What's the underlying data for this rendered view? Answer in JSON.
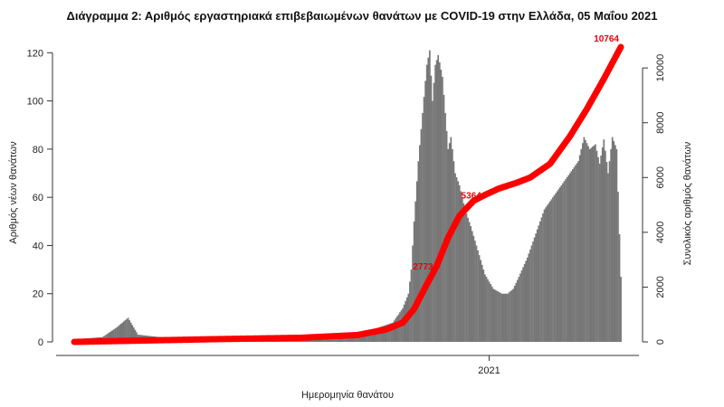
{
  "chart_data": {
    "type": "bar",
    "title": "Διάγραμμα 2: Αριθμός εργαστηριακά επιβεβαιωμένων θανάτων με COVID-19 στην Ελλάδα, 05 Μαΐου 2021",
    "xlabel": "Ημερομηνία θανάτου",
    "ylabel_left": "Αριθμός νέων θανάτων",
    "ylabel_right": "Συνολικός αριθμός θανάτων",
    "x_tick_labels": [
      "2021"
    ],
    "ylim_left": [
      0,
      125
    ],
    "yticks_left": [
      0,
      20,
      40,
      60,
      80,
      100,
      120
    ],
    "ylim_right": [
      0,
      10764
    ],
    "yticks_right": [
      0,
      2000,
      4000,
      6000,
      8000,
      10000
    ],
    "series": [
      {
        "name": "",
        "kind": "bar",
        "axis": "left",
        "color": "#777777",
        "daily_points": [
          [
            0,
            1
          ],
          [
            20,
            2
          ],
          [
            30,
            6
          ],
          [
            38,
            10
          ],
          [
            45,
            3
          ],
          [
            60,
            2
          ],
          [
            100,
            1
          ],
          [
            140,
            1
          ],
          [
            180,
            1
          ],
          [
            200,
            2
          ],
          [
            210,
            5
          ],
          [
            225,
            8
          ],
          [
            232,
            14
          ],
          [
            236,
            20
          ],
          [
            238,
            30
          ],
          [
            240,
            50
          ],
          [
            243,
            75
          ],
          [
            246,
            95
          ],
          [
            249,
            115
          ],
          [
            251,
            121
          ],
          [
            253,
            100
          ],
          [
            255,
            115
          ],
          [
            257,
            119
          ],
          [
            260,
            110
          ],
          [
            262,
            95
          ],
          [
            264,
            80
          ],
          [
            266,
            85
          ],
          [
            269,
            70
          ],
          [
            272,
            65
          ],
          [
            276,
            55
          ],
          [
            280,
            48
          ],
          [
            284,
            40
          ],
          [
            290,
            28
          ],
          [
            296,
            22
          ],
          [
            302,
            20
          ],
          [
            306,
            20
          ],
          [
            310,
            22
          ],
          [
            314,
            27
          ],
          [
            320,
            35
          ],
          [
            326,
            45
          ],
          [
            332,
            55
          ],
          [
            338,
            60
          ],
          [
            344,
            65
          ],
          [
            350,
            70
          ],
          [
            356,
            75
          ],
          [
            360,
            85
          ],
          [
            364,
            80
          ],
          [
            368,
            82
          ],
          [
            371,
            74
          ],
          [
            374,
            84
          ],
          [
            377,
            70
          ],
          [
            380,
            85
          ],
          [
            383,
            80
          ],
          [
            386,
            27
          ]
        ]
      },
      {
        "name": "",
        "kind": "line",
        "axis": "right",
        "color": "#ff0000",
        "cumulative_points": [
          [
            0,
            0
          ],
          [
            100,
            100
          ],
          [
            160,
            150
          ],
          [
            200,
            250
          ],
          [
            220,
            450
          ],
          [
            232,
            700
          ],
          [
            240,
            1200
          ],
          [
            248,
            2000
          ],
          [
            256,
            2773
          ],
          [
            264,
            3800
          ],
          [
            272,
            4600
          ],
          [
            282,
            5150
          ],
          [
            290,
            5364
          ],
          [
            300,
            5600
          ],
          [
            312,
            5800
          ],
          [
            322,
            6000
          ],
          [
            336,
            6500
          ],
          [
            350,
            7500
          ],
          [
            362,
            8500
          ],
          [
            374,
            9600
          ],
          [
            386,
            10764
          ]
        ],
        "annotations": [
          {
            "x": 256,
            "value": 2773,
            "label": "2773"
          },
          {
            "x": 290,
            "value": 5364,
            "label": "5364"
          },
          {
            "x": 386,
            "value": 10764,
            "label": "10764"
          }
        ]
      }
    ],
    "x_tick_day_index": 293,
    "day_count": 387,
    "grid": false,
    "legend": "none"
  }
}
